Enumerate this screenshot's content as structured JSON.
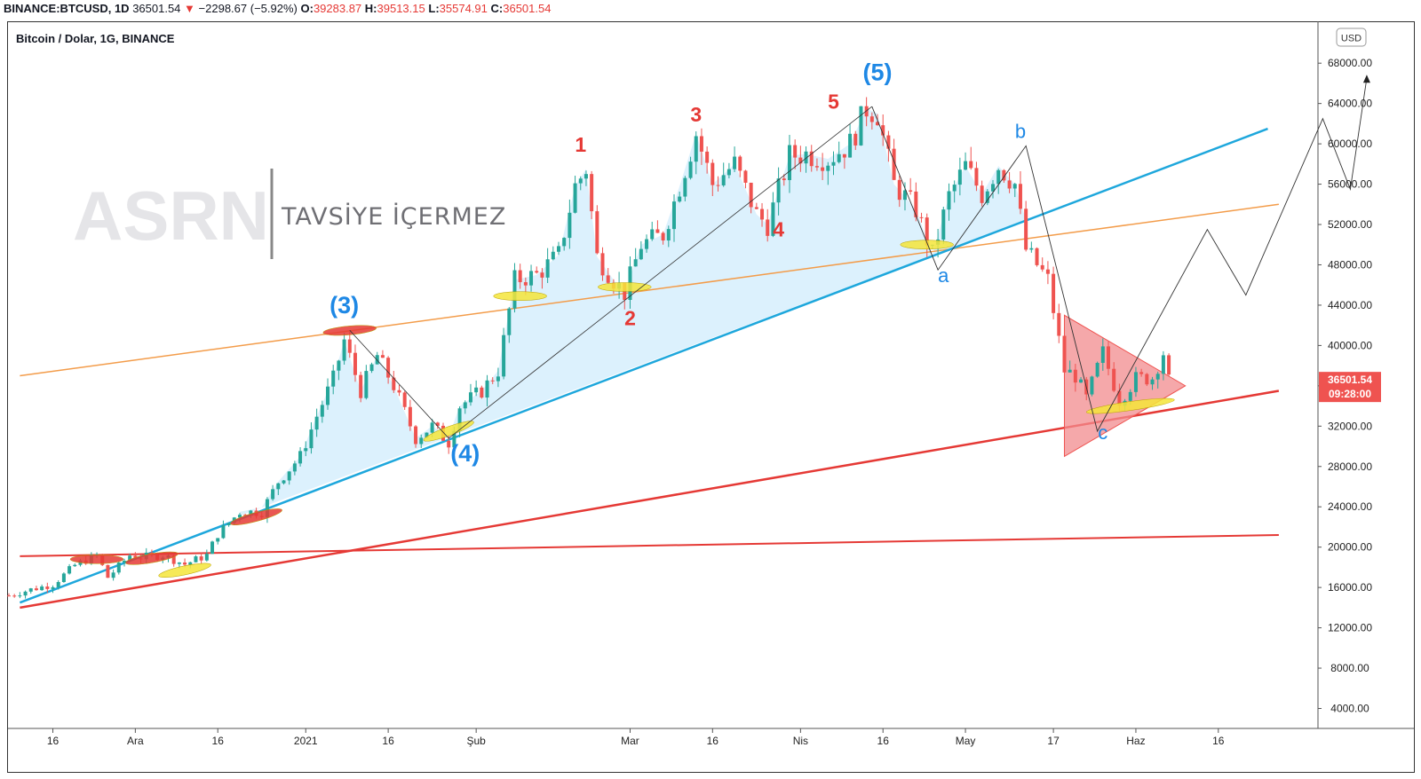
{
  "header": {
    "symbol": "BINANCE:BTCUSD, 1D",
    "last": "36501.54",
    "change_arrow": "▼",
    "change": "−2298.67 (−5.92%)",
    "o_label": "O:",
    "o_value": "39283.87",
    "h_label": "H:",
    "h_value": "39513.15",
    "l_label": "L:",
    "l_value": "35574.91",
    "c_label": "C:",
    "c_value": "36501.54"
  },
  "chart_data": {
    "type": "line",
    "title": "Bitcoin / Dolar, 1G, BINANCE",
    "currency_button": "USD",
    "watermark": {
      "logo": "ASRN",
      "text": "TAVSİYE İÇERMEZ"
    },
    "price_tag": {
      "price": "36501.54",
      "countdown": "09:28:00",
      "value": 36501.54
    },
    "y_axis": {
      "ylim": [
        2000,
        70000
      ],
      "ticks": [
        4000,
        8000,
        12000,
        16000,
        20000,
        24000,
        28000,
        32000,
        36000,
        40000,
        44000,
        48000,
        52000,
        56000,
        60000,
        64000,
        68000
      ],
      "tick_labels": [
        "4000.00",
        "8000.00",
        "12000.00",
        "16000.00",
        "20000.00",
        "24000.00",
        "28000.00",
        "32000.00",
        "36000.00",
        "40000.00",
        "44000.00",
        "48000.00",
        "52000.00",
        "56000.00",
        "60000.00",
        "64000.00",
        "68000.00"
      ]
    },
    "x_axis": {
      "start": "2020-11-08",
      "end": "2021-06-28",
      "ticks": [
        {
          "date": "2020-11-16",
          "label": "16"
        },
        {
          "date": "2020-12-01",
          "label": "Ara"
        },
        {
          "date": "2020-12-16",
          "label": "16"
        },
        {
          "date": "2021-01-01",
          "label": "2021"
        },
        {
          "date": "2021-01-16",
          "label": "16"
        },
        {
          "date": "2021-02-01",
          "label": "Şub"
        },
        {
          "date": "2021-03-01",
          "label": "Mar"
        },
        {
          "date": "2021-03-16",
          "label": "16"
        },
        {
          "date": "2021-04-01",
          "label": "Nis"
        },
        {
          "date": "2021-04-16",
          "label": "16"
        },
        {
          "date": "2021-05-01",
          "label": "May"
        },
        {
          "date": "2021-05-17",
          "label": "17"
        },
        {
          "date": "2021-06-01",
          "label": "Haz"
        },
        {
          "date": "2021-06-16",
          "label": "16"
        }
      ]
    },
    "series": [
      {
        "kind": "close_path",
        "points": [
          [
            "2020-11-08",
            15200
          ],
          [
            "2020-11-12",
            15800
          ],
          [
            "2020-11-16",
            16300
          ],
          [
            "2020-11-20",
            18200
          ],
          [
            "2020-11-24",
            19200
          ],
          [
            "2020-11-26",
            17000
          ],
          [
            "2020-11-30",
            19200
          ],
          [
            "2020-12-02",
            19000
          ],
          [
            "2020-12-06",
            19200
          ],
          [
            "2020-12-10",
            18300
          ],
          [
            "2020-12-14",
            19200
          ],
          [
            "2020-12-16",
            21300
          ],
          [
            "2020-12-20",
            23500
          ],
          [
            "2020-12-24",
            23500
          ],
          [
            "2020-12-27",
            26500
          ],
          [
            "2020-12-31",
            29000
          ],
          [
            "2021-01-03",
            33000
          ],
          [
            "2021-01-06",
            36700
          ],
          [
            "2021-01-08",
            40500
          ],
          [
            "2021-01-11",
            35500
          ],
          [
            "2021-01-14",
            39000
          ],
          [
            "2021-01-17",
            36000
          ],
          [
            "2021-01-21",
            30800
          ],
          [
            "2021-01-24",
            32000
          ],
          [
            "2021-01-27",
            30400
          ],
          [
            "2021-01-29",
            34000
          ],
          [
            "2021-02-02",
            35500
          ],
          [
            "2021-02-05",
            37500
          ],
          [
            "2021-02-08",
            46500
          ],
          [
            "2021-02-12",
            47000
          ],
          [
            "2021-02-16",
            49000
          ],
          [
            "2021-02-19",
            55800
          ],
          [
            "2021-02-21",
            57500
          ],
          [
            "2021-02-23",
            48800
          ],
          [
            "2021-02-26",
            46500
          ],
          [
            "2021-02-28",
            45200
          ],
          [
            "2021-03-03",
            50000
          ],
          [
            "2021-03-07",
            51000
          ],
          [
            "2021-03-10",
            55800
          ],
          [
            "2021-03-13",
            61000
          ],
          [
            "2021-03-16",
            56000
          ],
          [
            "2021-03-20",
            58000
          ],
          [
            "2021-03-24",
            53000
          ],
          [
            "2021-03-26",
            52000
          ],
          [
            "2021-03-30",
            58800
          ],
          [
            "2021-04-02",
            59000
          ],
          [
            "2021-04-06",
            58500
          ],
          [
            "2021-04-10",
            60000
          ],
          [
            "2021-04-13",
            63500
          ],
          [
            "2021-04-15",
            63000
          ],
          [
            "2021-04-18",
            56000
          ],
          [
            "2021-04-22",
            53500
          ],
          [
            "2021-04-25",
            49000
          ],
          [
            "2021-04-28",
            54800
          ],
          [
            "2021-05-01",
            57800
          ],
          [
            "2021-05-04",
            55000
          ],
          [
            "2021-05-07",
            57800
          ],
          [
            "2021-05-10",
            56000
          ],
          [
            "2021-05-12",
            49500
          ],
          [
            "2021-05-16",
            46500
          ],
          [
            "2021-05-19",
            37500
          ],
          [
            "2021-05-21",
            37000
          ],
          [
            "2021-05-23",
            34700
          ],
          [
            "2021-05-26",
            39300
          ],
          [
            "2021-05-29",
            34600
          ],
          [
            "2021-06-01",
            36700
          ],
          [
            "2021-06-04",
            36800
          ],
          [
            "2021-06-06",
            39283
          ],
          [
            "2021-06-07",
            36501
          ]
        ]
      }
    ],
    "annotations": [
      {
        "text": "(3)",
        "color": "#1e88e5",
        "date": "2021-01-08",
        "price": 43200
      },
      {
        "text": "(4)",
        "color": "#1e88e5",
        "date": "2021-01-30",
        "price": 28500
      },
      {
        "text": "(5)",
        "color": "#1e88e5",
        "date": "2021-04-15",
        "price": 66300
      },
      {
        "text": "1",
        "color": "#e53935",
        "date": "2021-02-20",
        "price": 59200
      },
      {
        "text": "2",
        "color": "#e53935",
        "date": "2021-03-01",
        "price": 42000
      },
      {
        "text": "3",
        "color": "#e53935",
        "date": "2021-03-13",
        "price": 62200
      },
      {
        "text": "4",
        "color": "#e53935",
        "date": "2021-03-28",
        "price": 50800
      },
      {
        "text": "5",
        "color": "#e53935",
        "date": "2021-04-07",
        "price": 63500
      },
      {
        "text": "a",
        "color": "#1e88e5",
        "date": "2021-04-27",
        "price": 46300
      },
      {
        "text": "b",
        "color": "#1e88e5",
        "date": "2021-05-11",
        "price": 60600
      },
      {
        "text": "c",
        "color": "#1e88e5",
        "date": "2021-05-26",
        "price": 30700
      }
    ]
  }
}
